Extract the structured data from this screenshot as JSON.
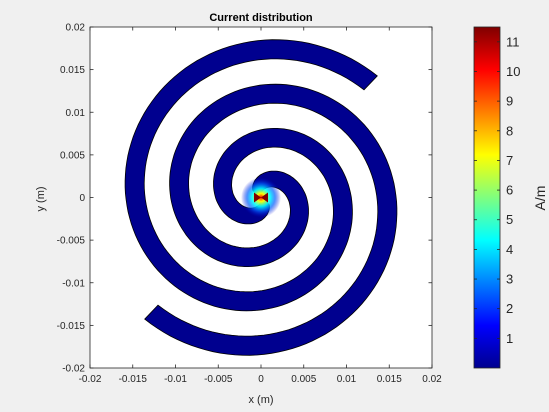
{
  "chart_data": {
    "type": "heatmap",
    "title": "Current distribution",
    "xlabel": "x (m)",
    "ylabel": "y (m)",
    "xlim": [
      -0.02,
      0.02
    ],
    "ylim": [
      -0.02,
      0.02
    ],
    "x_ticks": [
      -0.02,
      -0.015,
      -0.01,
      -0.005,
      0,
      0.005,
      0.01,
      0.015,
      0.02
    ],
    "y_ticks": [
      -0.02,
      -0.015,
      -0.01,
      -0.005,
      0,
      0.005,
      0.01,
      0.015,
      0.02
    ],
    "x_tick_labels": [
      "-0.02",
      "-0.015",
      "-0.01",
      "-0.005",
      "0",
      "0.005",
      "0.01",
      "0.015",
      "0.02"
    ],
    "y_tick_labels": [
      "-0.02",
      "-0.015",
      "-0.01",
      "-0.005",
      "0",
      "0.005",
      "0.01",
      "0.015",
      "0.02"
    ],
    "grid": false,
    "colormap": "jet",
    "colorbar": {
      "label": "A/m",
      "range": [
        0,
        11.5
      ],
      "ticks": [
        1,
        2,
        3,
        4,
        5,
        6,
        7,
        8,
        9,
        10,
        11
      ],
      "tick_labels": [
        "1",
        "2",
        "3",
        "4",
        "5",
        "6",
        "7",
        "8",
        "9",
        "10",
        "11"
      ]
    },
    "structure": {
      "shape": "two-arm archimedean spiral antenna",
      "arms": 2,
      "feed_point": [
        0,
        0
      ],
      "peak_current": 11.3,
      "background_current": 0.3
    },
    "colors": {
      "figure_background": "#f0f0f0",
      "axes_background": "#ffffff",
      "low_current": "#00008f",
      "high_current": "#800000"
    }
  }
}
